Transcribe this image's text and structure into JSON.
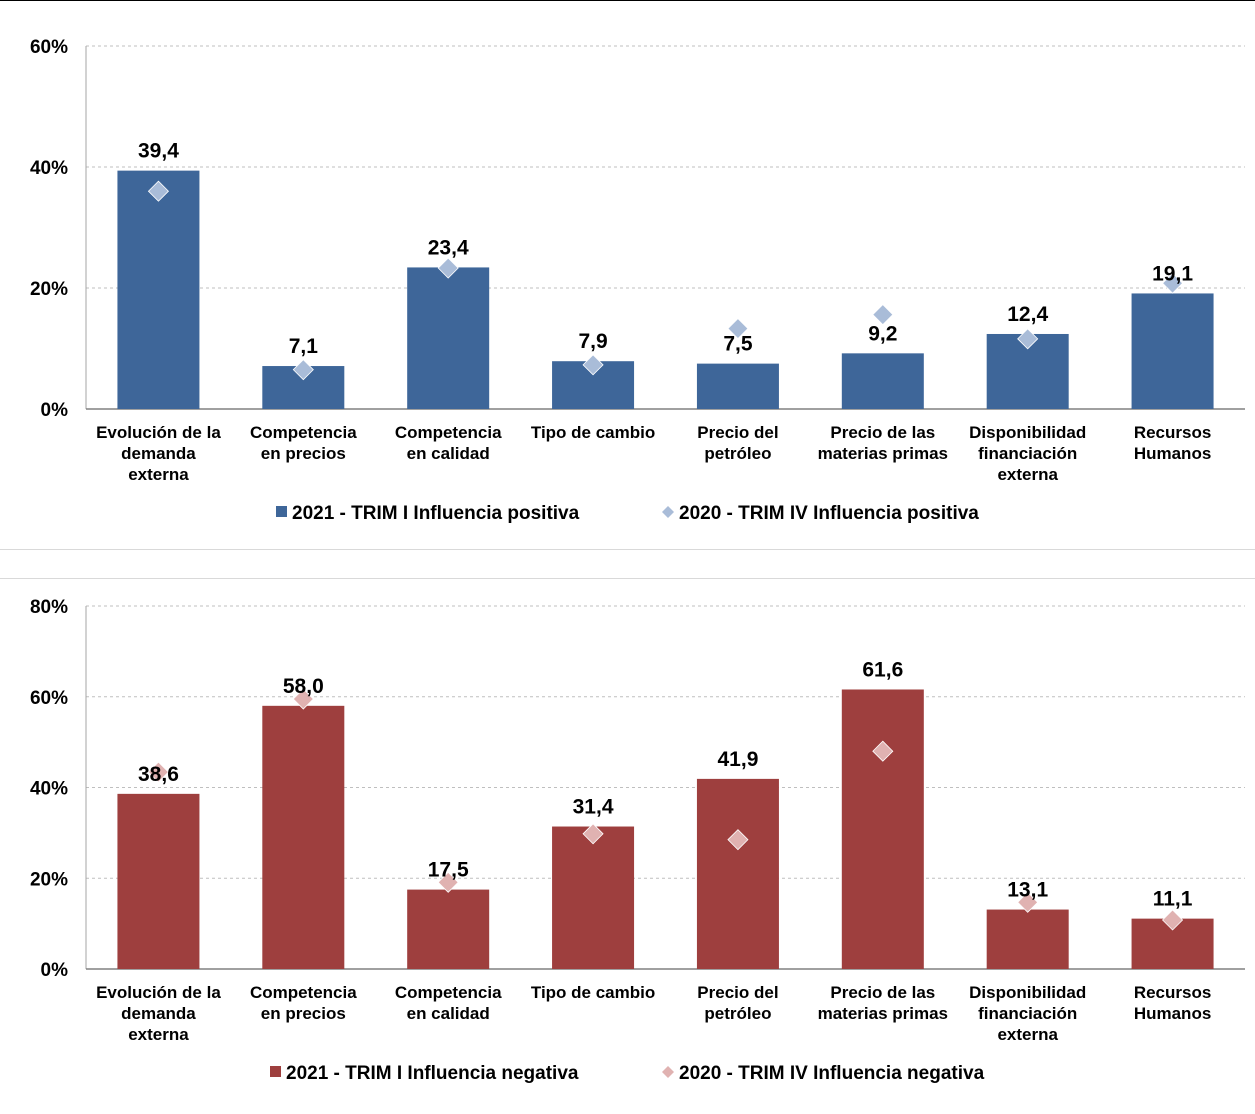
{
  "chart_data": [
    {
      "type": "bar",
      "title": "",
      "xlabel": "",
      "ylabel": "",
      "ylim": [
        0,
        60
      ],
      "yticks": [
        "0%",
        "20%",
        "40%",
        "60%"
      ],
      "ytick_values": [
        0,
        20,
        40,
        60
      ],
      "grid": true,
      "legend_position": "bottom",
      "categories": [
        [
          "Evolución de la",
          "demanda",
          "externa"
        ],
        [
          "Competencia",
          "en precios"
        ],
        [
          "Competencia",
          "en calidad"
        ],
        [
          "Tipo de cambio"
        ],
        [
          "Precio del",
          "petróleo"
        ],
        [
          "Precio de las",
          "materias primas"
        ],
        [
          "Disponibilidad",
          "financiación",
          "externa"
        ],
        [
          "Recursos",
          "Humanos"
        ]
      ],
      "series": [
        {
          "name": "2021 - TRIM I Influencia positiva",
          "type": "bar",
          "color": "#3e6699",
          "values": [
            39.4,
            7.1,
            23.4,
            7.9,
            7.5,
            9.2,
            12.4,
            19.1
          ],
          "labels": [
            "39,4",
            "7,1",
            "23,4",
            "7,9",
            "7,5",
            "9,2",
            "12,4",
            "19,1"
          ]
        },
        {
          "name": "2020 - TRIM IV Influencia positiva",
          "type": "marker",
          "color": "#a9bcd8",
          "values": [
            36.0,
            6.5,
            23.3,
            7.3,
            13.3,
            15.6,
            11.6,
            20.8
          ]
        }
      ]
    },
    {
      "type": "bar",
      "title": "",
      "xlabel": "",
      "ylabel": "",
      "ylim": [
        0,
        80
      ],
      "yticks": [
        "0%",
        "20%",
        "40%",
        "60%",
        "80%"
      ],
      "ytick_values": [
        0,
        20,
        40,
        60,
        80
      ],
      "grid": true,
      "legend_position": "bottom",
      "categories": [
        [
          "Evolución de la",
          "demanda",
          "externa"
        ],
        [
          "Competencia",
          "en precios"
        ],
        [
          "Competencia",
          "en calidad"
        ],
        [
          "Tipo de cambio"
        ],
        [
          "Precio del",
          "petróleo"
        ],
        [
          "Precio de las",
          "materias primas"
        ],
        [
          "Disponibilidad",
          "financiación",
          "externa"
        ],
        [
          "Recursos",
          "Humanos"
        ]
      ],
      "series": [
        {
          "name": "2021 - TRIM I Influencia negativa",
          "type": "bar",
          "color": "#9e3f3e",
          "values": [
            38.6,
            58.0,
            17.5,
            31.4,
            41.9,
            61.6,
            13.1,
            11.1
          ],
          "labels": [
            "38,6",
            "58,0",
            "17,5",
            "31,4",
            "41,9",
            "61,6",
            "13,1",
            "11,1"
          ]
        },
        {
          "name": "2020 - TRIM IV Influencia negativa",
          "type": "marker",
          "color": "#e0b2b1",
          "values": [
            43.4,
            59.5,
            19.1,
            29.8,
            28.5,
            48.0,
            14.7,
            10.8
          ]
        }
      ]
    }
  ]
}
